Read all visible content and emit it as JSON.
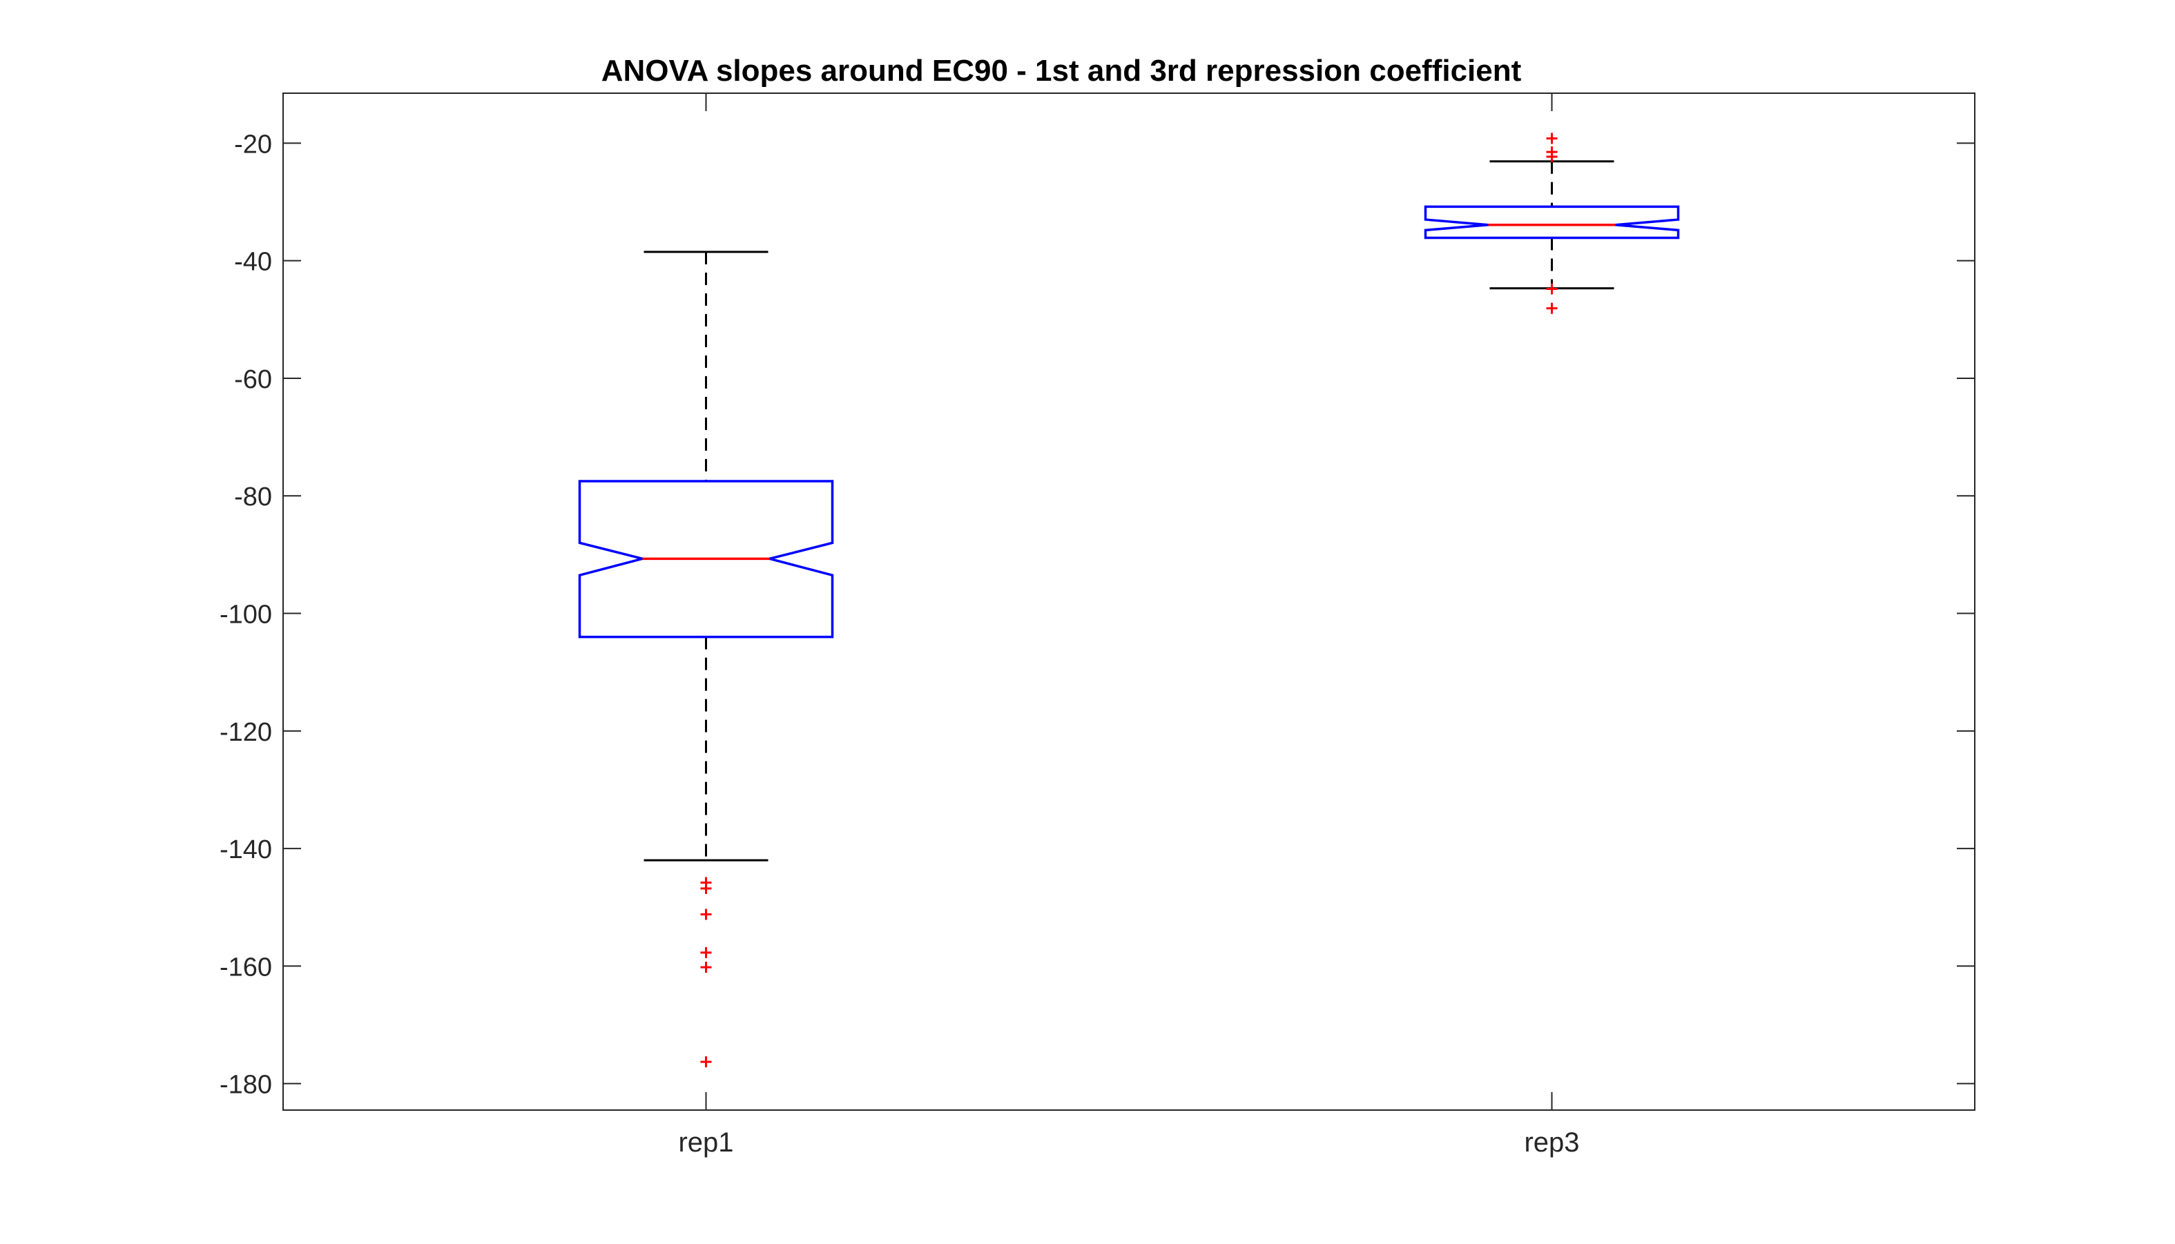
{
  "chart_data": {
    "type": "boxplot",
    "title": "ANOVA slopes around EC90 - 1st and 3rd repression coefficient",
    "xlabel": "",
    "ylabel": "",
    "categories": [
      "rep1",
      "rep3"
    ],
    "ylim": [
      -184.5,
      -11.5
    ],
    "yticks": [
      -20,
      -40,
      -60,
      -80,
      -100,
      -120,
      -140,
      -160,
      -180
    ],
    "grid": false,
    "notched": true,
    "boxes": [
      {
        "label": "rep1",
        "whisker_high": -38.5,
        "q3": -77.5,
        "notch_high": -88,
        "median": -90.7,
        "notch_low": -93.5,
        "q1": -104,
        "whisker_low": -142,
        "outliers": [
          -145.8,
          -146.8,
          -151.2,
          -157.7,
          -160.2,
          -176.3
        ]
      },
      {
        "label": "rep3",
        "whisker_high": -23.1,
        "q3": -30.8,
        "notch_high": -33,
        "median": -33.9,
        "notch_low": -34.8,
        "q1": -36.1,
        "whisker_low": -44.7,
        "outliers": [
          -19.2,
          -21.5,
          -22.3,
          -44.8,
          -48.1
        ]
      }
    ],
    "colors": {
      "box": "#0000ff",
      "median": "#ff0000",
      "whisker": "#000000",
      "outlier": "#ff0000",
      "axes": "#262626"
    }
  }
}
